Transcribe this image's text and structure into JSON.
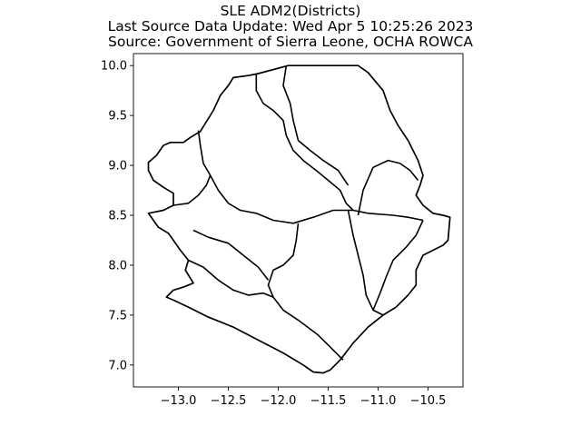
{
  "title_lines": [
    "SLE ADM2(Districts)",
    "Last Source Data Update: Wed Apr 5 10:25:26 2023",
    "Source: Government of Sierra Leone, OCHA ROWCA"
  ],
  "map": {
    "xlim": [
      -13.45,
      -10.15
    ],
    "ylim": [
      6.78,
      10.12
    ],
    "xticks": [
      -13.0,
      -12.5,
      -12.0,
      -11.5,
      -11.0,
      -10.5
    ],
    "xtick_labels": [
      "−13.0",
      "−12.5",
      "−12.0",
      "−11.5",
      "−11.0",
      "−10.5"
    ],
    "yticks": [
      7.0,
      7.5,
      8.0,
      8.5,
      9.0,
      9.5,
      10.0
    ],
    "ytick_labels": [
      "7.0",
      "7.5",
      "8.0",
      "8.5",
      "9.0",
      "9.5",
      "10.0"
    ],
    "stroke_color": "#000000",
    "fill_color": "#ffffff",
    "outline": [
      [
        -13.3,
        9.03
      ],
      [
        -13.22,
        9.1
      ],
      [
        -13.15,
        9.2
      ],
      [
        -13.08,
        9.23
      ],
      [
        -12.95,
        9.23
      ],
      [
        -12.88,
        9.28
      ],
      [
        -12.78,
        9.34
      ],
      [
        -12.65,
        9.55
      ],
      [
        -12.58,
        9.7
      ],
      [
        -12.5,
        9.8
      ],
      [
        -12.45,
        9.88
      ],
      [
        -12.3,
        9.9
      ],
      [
        -12.2,
        9.92
      ],
      [
        -11.9,
        10.0
      ],
      [
        -11.2,
        10.0
      ],
      [
        -11.1,
        9.93
      ],
      [
        -10.95,
        9.75
      ],
      [
        -10.88,
        9.55
      ],
      [
        -10.8,
        9.4
      ],
      [
        -10.7,
        9.25
      ],
      [
        -10.65,
        9.15
      ],
      [
        -10.6,
        9.05
      ],
      [
        -10.55,
        8.9
      ],
      [
        -10.58,
        8.8
      ],
      [
        -10.62,
        8.7
      ],
      [
        -10.55,
        8.6
      ],
      [
        -10.45,
        8.52
      ],
      [
        -10.35,
        8.5
      ],
      [
        -10.28,
        8.48
      ],
      [
        -10.3,
        8.25
      ],
      [
        -10.35,
        8.2
      ],
      [
        -10.45,
        8.15
      ],
      [
        -10.55,
        8.1
      ],
      [
        -10.62,
        7.95
      ],
      [
        -10.62,
        7.8
      ],
      [
        -10.7,
        7.7
      ],
      [
        -10.82,
        7.58
      ],
      [
        -10.95,
        7.5
      ],
      [
        -11.1,
        7.38
      ],
      [
        -11.25,
        7.22
      ],
      [
        -11.38,
        7.05
      ],
      [
        -11.48,
        6.95
      ],
      [
        -11.55,
        6.92
      ],
      [
        -11.65,
        6.93
      ],
      [
        -11.75,
        7.0
      ],
      [
        -11.95,
        7.12
      ],
      [
        -12.2,
        7.25
      ],
      [
        -12.45,
        7.38
      ],
      [
        -12.7,
        7.48
      ],
      [
        -12.9,
        7.58
      ],
      [
        -13.05,
        7.65
      ],
      [
        -13.12,
        7.68
      ],
      [
        -13.05,
        7.75
      ],
      [
        -12.95,
        7.78
      ],
      [
        -12.85,
        7.82
      ],
      [
        -12.93,
        7.95
      ],
      [
        -12.9,
        8.05
      ],
      [
        -12.98,
        8.15
      ],
      [
        -13.05,
        8.25
      ],
      [
        -13.1,
        8.32
      ],
      [
        -13.2,
        8.38
      ],
      [
        -13.25,
        8.45
      ],
      [
        -13.3,
        8.52
      ],
      [
        -13.15,
        8.55
      ],
      [
        -13.05,
        8.6
      ],
      [
        -13.05,
        8.72
      ],
      [
        -13.15,
        8.78
      ],
      [
        -13.25,
        8.85
      ],
      [
        -13.3,
        8.95
      ],
      [
        -13.3,
        9.03
      ]
    ],
    "boundaries": [
      [
        [
          -12.8,
          9.35
        ],
        [
          -12.78,
          9.2
        ],
        [
          -12.75,
          9.02
        ],
        [
          -12.68,
          8.9
        ],
        [
          -12.6,
          8.75
        ],
        [
          -12.5,
          8.62
        ],
        [
          -12.38,
          8.55
        ],
        [
          -12.22,
          8.52
        ],
        [
          -12.05,
          8.45
        ],
        [
          -11.85,
          8.42
        ],
        [
          -11.65,
          8.48
        ],
        [
          -11.45,
          8.55
        ],
        [
          -11.25,
          8.55
        ],
        [
          -11.1,
          8.52
        ],
        [
          -10.85,
          8.5
        ],
        [
          -10.7,
          8.48
        ],
        [
          -10.55,
          8.45
        ]
      ],
      [
        [
          -12.22,
          9.92
        ],
        [
          -12.22,
          9.75
        ],
        [
          -12.15,
          9.62
        ],
        [
          -12.05,
          9.55
        ],
        [
          -11.95,
          9.45
        ],
        [
          -11.92,
          9.3
        ],
        [
          -11.85,
          9.15
        ],
        [
          -11.75,
          9.05
        ],
        [
          -11.62,
          8.95
        ],
        [
          -11.5,
          8.85
        ],
        [
          -11.38,
          8.75
        ],
        [
          -11.32,
          8.62
        ],
        [
          -11.25,
          8.55
        ]
      ],
      [
        [
          -11.92,
          10.0
        ],
        [
          -11.95,
          9.8
        ],
        [
          -11.88,
          9.62
        ],
        [
          -11.85,
          9.45
        ],
        [
          -11.8,
          9.25
        ],
        [
          -11.68,
          9.15
        ],
        [
          -11.55,
          9.05
        ],
        [
          -11.4,
          8.95
        ],
        [
          -11.3,
          8.8
        ]
      ],
      [
        [
          -11.2,
          8.5
        ],
        [
          -11.15,
          8.75
        ],
        [
          -11.05,
          8.98
        ],
        [
          -10.9,
          9.05
        ],
        [
          -10.78,
          9.02
        ],
        [
          -10.68,
          8.95
        ],
        [
          -10.6,
          8.85
        ]
      ],
      [
        [
          -11.8,
          8.42
        ],
        [
          -11.82,
          8.25
        ],
        [
          -11.85,
          8.1
        ],
        [
          -11.95,
          8.0
        ],
        [
          -12.05,
          7.95
        ],
        [
          -12.1,
          7.8
        ],
        [
          -12.05,
          7.68
        ],
        [
          -11.95,
          7.55
        ],
        [
          -11.8,
          7.45
        ],
        [
          -11.6,
          7.3
        ],
        [
          -11.45,
          7.15
        ],
        [
          -11.35,
          7.05
        ]
      ],
      [
        [
          -11.3,
          8.55
        ],
        [
          -11.25,
          8.3
        ],
        [
          -11.2,
          8.1
        ],
        [
          -11.15,
          7.9
        ],
        [
          -11.12,
          7.7
        ],
        [
          -11.05,
          7.55
        ],
        [
          -10.95,
          7.5
        ]
      ],
      [
        [
          -12.85,
          8.35
        ],
        [
          -12.7,
          8.28
        ],
        [
          -12.5,
          8.22
        ],
        [
          -12.35,
          8.1
        ],
        [
          -12.2,
          7.98
        ],
        [
          -12.1,
          7.85
        ]
      ],
      [
        [
          -12.9,
          8.05
        ],
        [
          -12.75,
          7.98
        ],
        [
          -12.6,
          7.85
        ],
        [
          -12.45,
          7.75
        ],
        [
          -12.3,
          7.7
        ],
        [
          -12.15,
          7.72
        ],
        [
          -12.05,
          7.68
        ]
      ],
      [
        [
          -10.55,
          8.45
        ],
        [
          -10.62,
          8.3
        ],
        [
          -10.72,
          8.18
        ],
        [
          -10.85,
          8.05
        ],
        [
          -10.92,
          7.88
        ],
        [
          -10.98,
          7.72
        ],
        [
          -11.05,
          7.55
        ]
      ],
      [
        [
          -13.05,
          8.6
        ],
        [
          -12.9,
          8.62
        ],
        [
          -12.8,
          8.7
        ],
        [
          -12.72,
          8.8
        ],
        [
          -12.68,
          8.9
        ]
      ]
    ]
  }
}
